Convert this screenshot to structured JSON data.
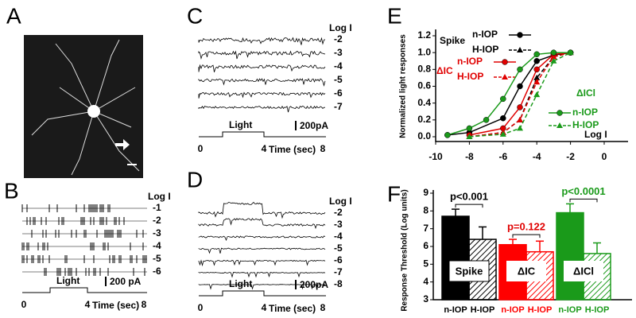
{
  "panel_labels": [
    "A",
    "B",
    "C",
    "D",
    "E",
    "F"
  ],
  "panel_b": {
    "log_label": "Log I",
    "levels": [
      "-1",
      "-2",
      "-3",
      "-4",
      "-5",
      "-6"
    ],
    "stimulus": "Light",
    "scale_bar": "200 pA",
    "x_labels": [
      "0",
      "4",
      "8"
    ],
    "x_title": "Time (sec)"
  },
  "panel_c": {
    "log_label": "Log I",
    "levels": [
      "-2",
      "-3",
      "-4",
      "-5",
      "-6",
      "-7"
    ],
    "stimulus": "Light",
    "scale_bar": "200pA",
    "x_labels": [
      "0",
      "4",
      "8"
    ],
    "x_title": "Time (sec)"
  },
  "panel_d": {
    "log_label": "Log I",
    "levels": [
      "-2",
      "-3",
      "-4",
      "-5",
      "-6",
      "-7",
      "-8"
    ],
    "stimulus": "Light",
    "scale_bar": "200pA",
    "x_labels": [
      "0",
      "4",
      "8"
    ],
    "x_title": "Time (sec)"
  },
  "chart_data": [
    {
      "type": "line",
      "x_label": "Log I",
      "y_label": "Normalized light responses",
      "xlim": [
        -10,
        0
      ],
      "xticks": [
        -10,
        -8,
        -6,
        -4,
        -2,
        0
      ],
      "ylim": [
        0,
        1.2
      ],
      "yticks": [
        {
          "value": 0,
          "label": "0.0"
        },
        {
          "value": 0.2,
          "label": "0.2"
        },
        {
          "value": 0.4,
          "label": "0.4"
        },
        {
          "value": 0.6,
          "label": "0.6"
        },
        {
          "value": 0.8,
          "label": "0.8"
        },
        {
          "value": 1,
          "label": "1.0"
        },
        {
          "value": 1.2,
          "label": "1.2"
        }
      ],
      "groups": [
        "Spike",
        "ΔIC",
        "ΔICl"
      ],
      "series": [
        {
          "group": 0,
          "name": "n-IOP",
          "color": "#000000",
          "marker": "circle",
          "dashed": false,
          "x": [
            -9.3,
            -8,
            -6,
            -5,
            -4,
            -3,
            -2
          ],
          "values": [
            0.02,
            0.05,
            0.22,
            0.6,
            0.9,
            0.97,
            1.0
          ]
        },
        {
          "group": 0,
          "name": "H-IOP",
          "color": "#000000",
          "marker": "triangle",
          "dashed": true,
          "x": [
            -8,
            -6,
            -5,
            -4,
            -3,
            -2
          ],
          "values": [
            0.0,
            0.05,
            0.2,
            0.7,
            0.95,
            1.0
          ]
        },
        {
          "group": 1,
          "name": "n-IOP",
          "color": "#e00000",
          "marker": "circle",
          "dashed": false,
          "x": [
            -8,
            -6,
            -5,
            -4,
            -3,
            -2
          ],
          "values": [
            0.02,
            0.1,
            0.35,
            0.8,
            0.98,
            1.0
          ]
        },
        {
          "group": 1,
          "name": "H-IOP",
          "color": "#e00000",
          "marker": "triangle",
          "dashed": true,
          "x": [
            -8,
            -6,
            -5,
            -4,
            -3,
            -2
          ],
          "values": [
            0.0,
            0.05,
            0.2,
            0.65,
            0.95,
            1.0
          ]
        },
        {
          "group": 2,
          "name": "n-IOP",
          "color": "#1a9a1a",
          "marker": "circle",
          "dashed": false,
          "x": [
            -9.3,
            -8,
            -7,
            -6,
            -5,
            -4,
            -3,
            -2
          ],
          "values": [
            0.02,
            0.1,
            0.2,
            0.45,
            0.8,
            0.98,
            1.0,
            1.0
          ]
        },
        {
          "group": 2,
          "name": "H-IOP",
          "color": "#1a9a1a",
          "marker": "triangle",
          "dashed": true,
          "x": [
            -8,
            -6,
            -5,
            -4,
            -3,
            -2
          ],
          "values": [
            0.0,
            0.03,
            0.1,
            0.5,
            0.9,
            1.0
          ]
        }
      ]
    },
    {
      "type": "bar",
      "y_label": "Response Threshold (Log units)",
      "ylim": [
        3,
        9
      ],
      "yticks": [
        3,
        4,
        5,
        6,
        7,
        8,
        9
      ],
      "categories": [
        "n-IOP",
        "H-IOP",
        "n-IOP",
        "H-IOP",
        "n-IOP",
        "H-IOP"
      ],
      "values": [
        7.7,
        6.4,
        6.1,
        5.7,
        7.9,
        5.6
      ],
      "errors": [
        0.4,
        0.7,
        0.3,
        0.6,
        0.5,
        0.6
      ],
      "colors": [
        "#000000",
        "#000000",
        "#ff0000",
        "#ff0000",
        "#1a9a1a",
        "#1a9a1a"
      ],
      "hatched": [
        false,
        true,
        false,
        true,
        false,
        true
      ],
      "groups": [
        "Spike",
        "ΔIC",
        "ΔICl"
      ],
      "annotations": [
        {
          "text": "p<0.001",
          "color": "#000000"
        },
        {
          "text": "p=0.122",
          "color": "#e00000"
        },
        {
          "text": "p<0.0001",
          "color": "#1a9a1a"
        }
      ]
    }
  ]
}
